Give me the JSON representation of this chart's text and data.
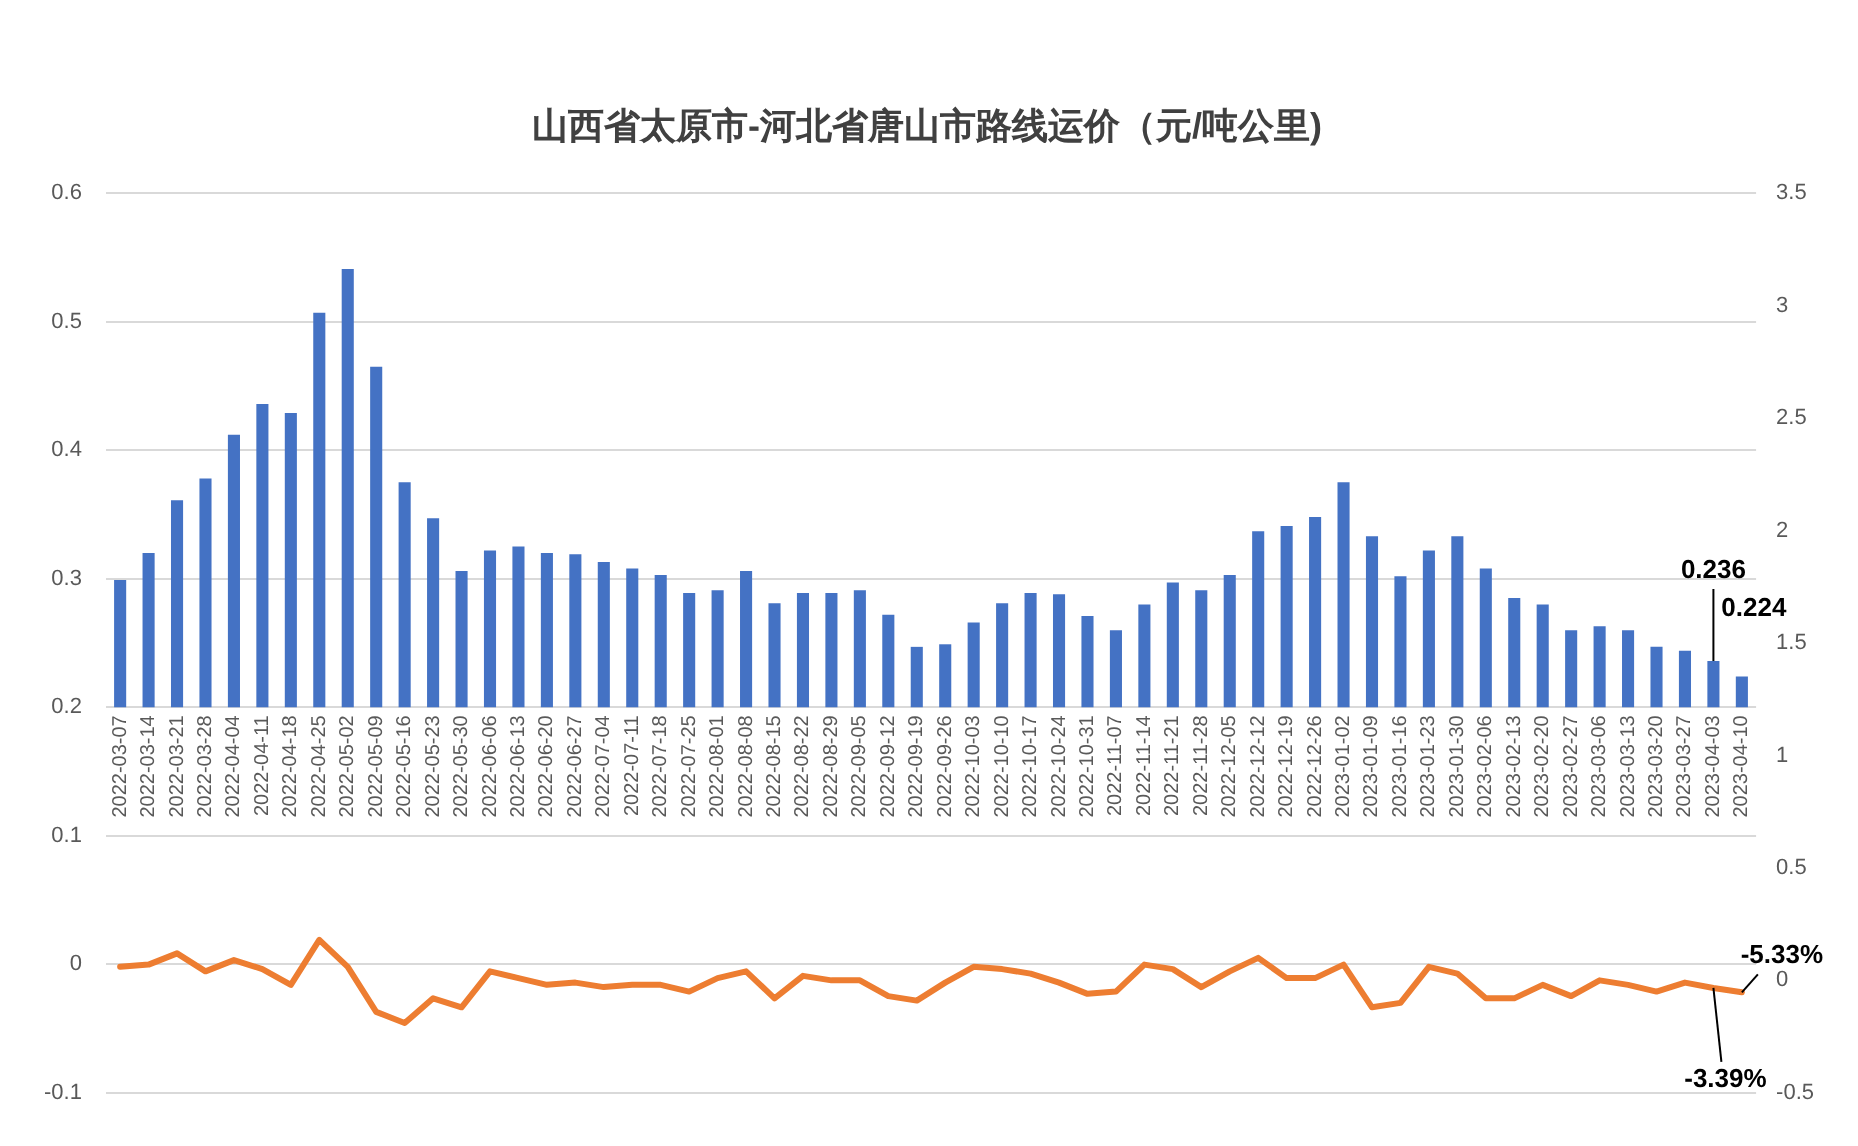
{
  "chart_data": {
    "type": "bar",
    "title": "山西省太原市-河北省唐山市路线运价（元/吨公里)",
    "categories": [
      "2022-03-07",
      "2022-03-14",
      "2022-03-21",
      "2022-03-28",
      "2022-04-04",
      "2022-04-11",
      "2022-04-18",
      "2022-04-25",
      "2022-05-02",
      "2022-05-09",
      "2022-05-16",
      "2022-05-23",
      "2022-05-30",
      "2022-06-06",
      "2022-06-13",
      "2022-06-20",
      "2022-06-27",
      "2022-07-04",
      "2022-07-11",
      "2022-07-18",
      "2022-07-25",
      "2022-08-01",
      "2022-08-08",
      "2022-08-15",
      "2022-08-22",
      "2022-08-29",
      "2022-09-05",
      "2022-09-12",
      "2022-09-19",
      "2022-09-26",
      "2022-10-03",
      "2022-10-10",
      "2022-10-17",
      "2022-10-24",
      "2022-10-31",
      "2022-11-07",
      "2022-11-14",
      "2022-11-21",
      "2022-11-28",
      "2022-12-05",
      "2022-12-12",
      "2022-12-19",
      "2022-12-26",
      "2023-01-02",
      "2023-01-09",
      "2023-01-16",
      "2023-01-23",
      "2023-01-30",
      "2023-02-06",
      "2023-02-13",
      "2023-02-20",
      "2023-02-27",
      "2023-03-06",
      "2023-03-13",
      "2023-03-20",
      "2023-03-27",
      "2023-04-03",
      "2023-04-10"
    ],
    "series": [
      {
        "type": "bar",
        "color": "#4472c4",
        "base": [
          0.2,
          0.2,
          0.2,
          0.2,
          0.2,
          0.2,
          0.2,
          0.2,
          0.2,
          0.2,
          0.2,
          0.2,
          0.2,
          0.2,
          0.2,
          0.2,
          0.2,
          0.2,
          0.2,
          0.2,
          0.2,
          0.2,
          0.2,
          0.2,
          0.2,
          0.2,
          0.2,
          0.2,
          0.2,
          0.2,
          0.2,
          0.2,
          0.2,
          0.2,
          0.2,
          0.2,
          0.2,
          0.2,
          0.2,
          0.2,
          0.2,
          0.2,
          0.2,
          0.2,
          0.2,
          0.2,
          0.2,
          0.2,
          0.2,
          0.2,
          0.2,
          0.2,
          0.2,
          0.2,
          0.2,
          0.2,
          0.2,
          0.2
        ],
        "values": [
          0.099,
          0.12,
          0.161,
          0.178,
          0.212,
          0.236,
          0.229,
          0.307,
          0.341,
          0.265,
          0.175,
          0.147,
          0.106,
          0.122,
          0.125,
          0.12,
          0.119,
          0.113,
          0.108,
          0.103,
          0.089,
          0.091,
          0.106,
          0.081,
          0.089,
          0.089,
          0.091,
          0.072,
          0.047,
          0.049,
          0.066,
          0.081,
          0.089,
          0.088,
          0.071,
          0.06,
          0.08,
          0.097,
          0.091,
          0.103,
          0.137,
          0.141,
          0.148,
          0.175,
          0.133,
          0.102,
          0.122,
          0.133,
          0.108,
          0.085,
          0.08,
          0.06,
          0.063,
          0.06,
          0.047,
          0.044,
          0.036,
          0.024
        ],
        "value_labels": [
          null,
          null,
          null,
          null,
          null,
          null,
          null,
          null,
          null,
          null,
          null,
          null,
          null,
          null,
          null,
          null,
          null,
          null,
          null,
          null,
          null,
          null,
          null,
          null,
          null,
          null,
          null,
          null,
          null,
          null,
          null,
          null,
          null,
          null,
          null,
          null,
          null,
          null,
          null,
          null,
          null,
          null,
          null,
          null,
          null,
          null,
          null,
          null,
          null,
          null,
          null,
          null,
          null,
          null,
          null,
          null,
          "0.236",
          "0.224"
        ]
      },
      {
        "type": "line",
        "color": "#ed7d31",
        "axis": "y2",
        "marker": "none",
        "line_style": "solid",
        "values": [
          0.06,
          0.07,
          0.12,
          0.04,
          0.09,
          0.05,
          -0.02,
          0.18,
          0.06,
          -0.14,
          -0.19,
          -0.08,
          -0.12,
          0.04,
          0.01,
          -0.02,
          -0.01,
          -0.03,
          -0.02,
          -0.02,
          -0.05,
          0.01,
          0.04,
          -0.08,
          0.02,
          0,
          0,
          -0.07,
          -0.09,
          -0.01,
          0.06,
          0.05,
          0.03,
          -0.01,
          -0.06,
          -0.05,
          0.07,
          0.05,
          -0.03,
          0.04,
          0.1,
          0.01,
          0.01,
          0.07,
          -0.12,
          -0.1,
          0.06,
          0.03,
          -0.08,
          -0.08,
          -0.02,
          -0.07,
          0,
          -0.02,
          -0.05,
          -0.01,
          -0.0339,
          -0.0533
        ],
        "value_labels": [
          null,
          null,
          null,
          null,
          null,
          null,
          null,
          null,
          null,
          null,
          null,
          null,
          null,
          null,
          null,
          null,
          null,
          null,
          null,
          null,
          null,
          null,
          null,
          null,
          null,
          null,
          null,
          null,
          null,
          null,
          null,
          null,
          null,
          null,
          null,
          null,
          null,
          null,
          null,
          null,
          null,
          null,
          null,
          null,
          null,
          null,
          null,
          null,
          null,
          null,
          null,
          null,
          null,
          null,
          null,
          null,
          "-3.39%",
          "-5.33%"
        ]
      }
    ],
    "ylim": [
      -0.1,
      0.6
    ],
    "yticks": [
      -0.1,
      0,
      0.1,
      0.2,
      0.3,
      0.4,
      0.5,
      0.6
    ],
    "y2lim": [
      -0.5,
      3.5
    ],
    "y2ticks": [
      -0.5,
      0,
      0.5,
      1,
      1.5,
      2,
      2.5,
      3,
      3.5
    ],
    "grid": "y",
    "legend": false
  }
}
